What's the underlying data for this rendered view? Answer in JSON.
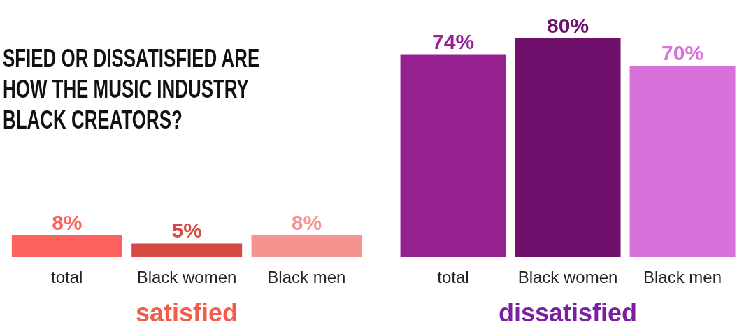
{
  "chart_data": [
    {
      "type": "bar",
      "title": "SFIED OR DISSATISFIED ARE\nHOW THE MUSIC INDUSTRY\nBLACK CREATORS?",
      "xlabel": "satisfied",
      "categories": [
        "total",
        "Black women",
        "Black men"
      ],
      "values": [
        8,
        5,
        8
      ],
      "colors": [
        "#fd625e",
        "#d64a44",
        "#f59390"
      ],
      "value_labels": [
        "8%",
        "5%",
        "8%"
      ],
      "tick_labels": "x"
    },
    {
      "type": "bar",
      "xlabel": "dissatisfied",
      "categories": [
        "total",
        "Black women",
        "Black men"
      ],
      "values": [
        74,
        80,
        70
      ],
      "colors": [
        "#962291",
        "#6e106c",
        "#d672d9"
      ],
      "value_labels": [
        "74%",
        "80%",
        "70%"
      ],
      "tick_labels": "x"
    }
  ]
}
